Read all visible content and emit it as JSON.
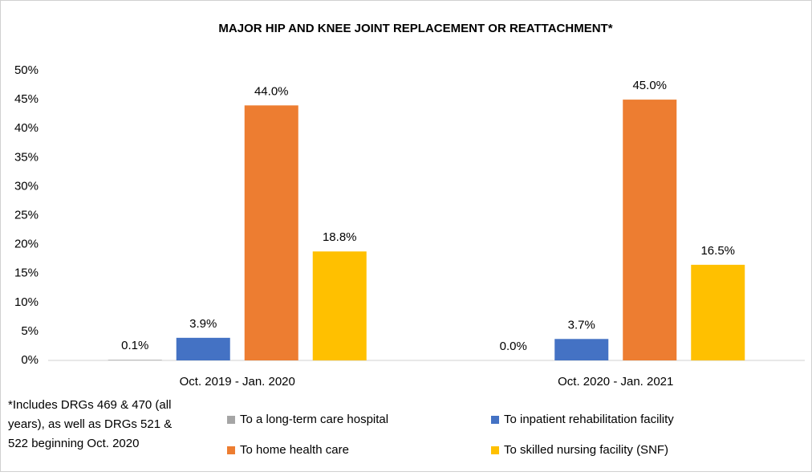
{
  "chart_data": {
    "type": "bar",
    "title": "MAJOR HIP AND KNEE JOINT REPLACEMENT OR REATTACHMENT*",
    "categories": [
      "Oct. 2019 - Jan. 2020",
      "Oct. 2020 - Jan. 2021"
    ],
    "series": [
      {
        "name": "To a long-term care hospital",
        "color": "#a5a5a5",
        "values": [
          0.1,
          0.0
        ],
        "value_labels": [
          "0.1%",
          "0.0%"
        ]
      },
      {
        "name": "To inpatient rehabilitation facility",
        "color": "#4472c4",
        "values": [
          3.9,
          3.7
        ],
        "value_labels": [
          "3.9%",
          "3.7%"
        ]
      },
      {
        "name": "To home health care",
        "color": "#ed7d31",
        "values": [
          44.0,
          45.0
        ],
        "value_labels": [
          "44.0%",
          "45.0%"
        ]
      },
      {
        "name": "To skilled nursing facility (SNF)",
        "color": "#ffc000",
        "values": [
          18.8,
          16.5
        ],
        "value_labels": [
          "18.8%",
          "16.5%"
        ]
      }
    ],
    "ylim": [
      0,
      50
    ],
    "yticks": [
      {
        "value": 0,
        "label": "0%"
      },
      {
        "value": 5,
        "label": "5%"
      },
      {
        "value": 10,
        "label": "10%"
      },
      {
        "value": 15,
        "label": "15%"
      },
      {
        "value": 20,
        "label": "20%"
      },
      {
        "value": 25,
        "label": "25%"
      },
      {
        "value": 30,
        "label": "30%"
      },
      {
        "value": 35,
        "label": "35%"
      },
      {
        "value": 40,
        "label": "40%"
      },
      {
        "value": 45,
        "label": "45%"
      },
      {
        "value": 50,
        "label": "50%"
      }
    ],
    "grid": false,
    "footnote": [
      "*Includes DRGs 469 & 470 (all",
      "years), as well as DRGs 521 &",
      "522 beginning Oct. 2020"
    ]
  }
}
